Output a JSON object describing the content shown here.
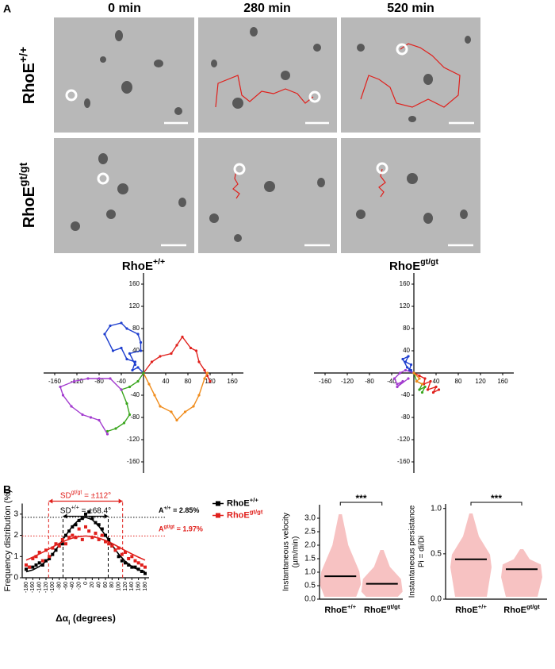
{
  "panel_a": {
    "label": "A",
    "columns": [
      "0 min",
      "280 min",
      "520 min"
    ],
    "rows": [
      {
        "base": "RhoE",
        "sup": "+/+"
      },
      {
        "base": "RhoE",
        "sup": "gt/gt"
      }
    ]
  },
  "panel_b": {
    "label": "B"
  },
  "chart_data": [
    {
      "type": "line",
      "title": {
        "base": "RhoE",
        "sup": "+/+"
      },
      "xlim": [
        -180,
        180
      ],
      "ylim": [
        -180,
        180
      ],
      "xticks": [
        -160,
        -120,
        -80,
        -40,
        40,
        80,
        120,
        160
      ],
      "yticks": [
        160,
        120,
        80,
        40,
        -40,
        -80,
        -120,
        -160
      ],
      "series": [
        {
          "color": "#1f3fcf",
          "x": [
            0,
            -10,
            -20,
            -15,
            -30,
            -40,
            -55,
            -70,
            -60,
            -40,
            -30,
            -10,
            -5,
            -5,
            -25,
            -15
          ],
          "values": [
            0,
            10,
            5,
            20,
            25,
            45,
            40,
            70,
            85,
            90,
            80,
            70,
            55,
            40,
            35,
            15
          ]
        },
        {
          "color": "#e0201c",
          "x": [
            0,
            15,
            30,
            50,
            60,
            70,
            85,
            95,
            100,
            110,
            115,
            120
          ],
          "values": [
            0,
            20,
            30,
            35,
            50,
            65,
            45,
            40,
            20,
            5,
            -5,
            -15
          ]
        },
        {
          "color": "#f08c1c",
          "x": [
            0,
            10,
            20,
            30,
            50,
            60,
            75,
            90,
            100,
            110,
            115
          ],
          "values": [
            0,
            -20,
            -40,
            -60,
            -70,
            -85,
            -70,
            -60,
            -40,
            -10,
            0
          ]
        },
        {
          "color": "#3aa61e",
          "x": [
            0,
            -10,
            -25,
            -40,
            -30,
            -25,
            -35,
            -50,
            -65
          ],
          "values": [
            0,
            -15,
            -25,
            -30,
            -55,
            -75,
            -90,
            -100,
            -105
          ]
        },
        {
          "color": "#a33ccf",
          "x": [
            -40,
            -60,
            -80,
            -100,
            -125,
            -150,
            -145,
            -130,
            -110,
            -95,
            -80,
            -65
          ],
          "values": [
            -30,
            -10,
            -10,
            -10,
            -15,
            -25,
            -40,
            -60,
            -75,
            -80,
            -85,
            -110
          ]
        }
      ]
    },
    {
      "type": "line",
      "title": {
        "base": "RhoE",
        "sup": "gt/gt"
      },
      "xlim": [
        -180,
        180
      ],
      "ylim": [
        -180,
        180
      ],
      "xticks": [
        -160,
        -120,
        -80,
        -40,
        40,
        80,
        120,
        160
      ],
      "yticks": [
        160,
        120,
        80,
        40,
        -40,
        -80,
        -120,
        -160
      ],
      "series": [
        {
          "color": "#1f3fcf",
          "x": [
            0,
            -8,
            -5,
            -15,
            -10,
            -20,
            -12,
            -5
          ],
          "values": [
            0,
            5,
            15,
            20,
            30,
            25,
            10,
            5
          ]
        },
        {
          "color": "#e0201c",
          "x": [
            0,
            10,
            20,
            18,
            30,
            25,
            40,
            35,
            45
          ],
          "values": [
            0,
            -5,
            -10,
            -20,
            -15,
            -30,
            -25,
            -35,
            -30
          ]
        },
        {
          "color": "#a33ccf",
          "x": [
            0,
            -15,
            -25,
            -35,
            -30,
            -20,
            -30,
            -10
          ],
          "values": [
            0,
            5,
            0,
            -10,
            -20,
            -15,
            -25,
            -10
          ]
        },
        {
          "color": "#3aa61e",
          "x": [
            0,
            5,
            15,
            10,
            20,
            15
          ],
          "values": [
            0,
            -15,
            -20,
            -30,
            -25,
            -35
          ]
        },
        {
          "color": "#f08c1c",
          "x": [
            0,
            10,
            5,
            15
          ],
          "values": [
            0,
            -10,
            -15,
            -20
          ]
        }
      ]
    },
    {
      "type": "scatter",
      "y_label": "Frequency distribution (%)",
      "x_label": {
        "base": "Δα",
        "sub": "i",
        "rest": " (degrees)"
      },
      "xlim": [
        -192,
        192
      ],
      "ylim": [
        0,
        3.5
      ],
      "xticks": [
        -180,
        -160,
        -140,
        -120,
        -100,
        -80,
        -60,
        -40,
        -20,
        0,
        20,
        40,
        60,
        80,
        100,
        120,
        140,
        160,
        180
      ],
      "yticks": [
        0,
        1,
        2,
        3
      ],
      "x": [
        -180,
        -170,
        -160,
        -150,
        -140,
        -130,
        -120,
        -110,
        -100,
        -90,
        -80,
        -70,
        -60,
        -50,
        -40,
        -30,
        -20,
        -10,
        0,
        10,
        20,
        30,
        40,
        50,
        60,
        70,
        80,
        90,
        100,
        110,
        120,
        130,
        140,
        150,
        160,
        170,
        180
      ],
      "series": [
        {
          "name": {
            "base": "RhoE",
            "sup": "+/+"
          },
          "color": "#000000",
          "values": [
            0.4,
            0.5,
            0.5,
            0.6,
            0.7,
            0.6,
            0.8,
            0.9,
            1.1,
            1.3,
            1.5,
            1.6,
            2.0,
            2.2,
            2.4,
            2.5,
            2.7,
            2.8,
            3.0,
            3.1,
            2.8,
            2.6,
            2.5,
            2.3,
            2.0,
            1.8,
            1.5,
            1.3,
            1.0,
            0.8,
            0.7,
            0.6,
            0.5,
            0.5,
            0.4,
            0.3,
            0.2
          ],
          "fit_x": [
            -180,
            -160,
            -140,
            -120,
            -100,
            -80,
            -60,
            -40,
            -20,
            0,
            20,
            40,
            60,
            80,
            100,
            120,
            140,
            160,
            180
          ],
          "fit": [
            0.28,
            0.37,
            0.53,
            0.77,
            1.11,
            1.54,
            2.0,
            2.43,
            2.74,
            2.85,
            2.74,
            2.43,
            2.0,
            1.54,
            1.11,
            0.77,
            0.53,
            0.37,
            0.28
          ]
        },
        {
          "name": {
            "base": "RhoE",
            "sup": "gt/gt"
          },
          "color": "#e0201c",
          "values": [
            0.6,
            0.5,
            0.9,
            1.0,
            1.2,
            0.8,
            1.3,
            1.0,
            1.4,
            1.6,
            1.5,
            1.8,
            1.6,
            1.9,
            2.0,
            1.9,
            2.3,
            1.8,
            2.4,
            2.2,
            1.9,
            2.1,
            1.8,
            2.0,
            1.7,
            1.6,
            1.5,
            1.3,
            1.4,
            1.1,
            1.2,
            0.9,
            1.0,
            0.8,
            0.7,
            0.6,
            0.5
          ],
          "fit_x": [
            -180,
            -160,
            -140,
            -120,
            -100,
            -80,
            -60,
            -40,
            -20,
            0,
            20,
            40,
            60,
            80,
            100,
            120,
            140,
            160,
            180
          ],
          "fit": [
            0.83,
            0.97,
            1.12,
            1.28,
            1.45,
            1.62,
            1.76,
            1.87,
            1.94,
            1.97,
            1.94,
            1.87,
            1.76,
            1.62,
            1.45,
            1.28,
            1.12,
            0.97,
            0.83
          ]
        }
      ],
      "annotations": [
        {
          "orientation": "vertical",
          "color": "#000000",
          "base": "SD",
          "sup": "+/+",
          "rest": " = ±68.4°",
          "value": 68.4
        },
        {
          "orientation": "vertical",
          "color": "#e0201c",
          "base": "SD",
          "sup": "gt/gt",
          "rest": " = ±112°",
          "value": 112
        },
        {
          "orientation": "horizontal",
          "color": "#000000",
          "base": "A",
          "sup": "+/+",
          "rest": " = 2.85%",
          "value": 2.85
        },
        {
          "orientation": "horizontal",
          "color": "#e0201c",
          "base": "A",
          "sup": "gt/gt",
          "rest": " = 1.97%",
          "value": 1.97
        }
      ],
      "legend": "right"
    },
    {
      "type": "dot",
      "y_label": [
        "Instantaneous velocity",
        "(µm/min)"
      ],
      "ylim": [
        0,
        3.5
      ],
      "yticks": [
        {
          "value": 0,
          "label": "0.0"
        },
        {
          "value": 0.5,
          "label": "0.5"
        },
        {
          "value": 1,
          "label": "1.0"
        },
        {
          "value": 1.5,
          "label": "1.5"
        },
        {
          "value": 2,
          "label": "2.0"
        },
        {
          "value": 2.5,
          "label": "2.5"
        },
        {
          "value": 3,
          "label": "3.0"
        }
      ],
      "categories": [
        {
          "base": "RhoE",
          "sup": "+/+"
        },
        {
          "base": "RhoE",
          "sup": "gt/gt"
        }
      ],
      "values": [
        0.85,
        0.57
      ],
      "color": "#f08f8f",
      "significance": "***"
    },
    {
      "type": "dot",
      "y_label": [
        "Instantaneous persistance",
        "Pi = di/Di"
      ],
      "ylim": [
        0,
        1.05
      ],
      "yticks": [
        {
          "value": 0,
          "label": "0.0"
        },
        {
          "value": 0.5,
          "label": "0.5"
        },
        {
          "value": 1,
          "label": "1.0"
        }
      ],
      "categories": [
        {
          "base": "RhoE",
          "sup": "+/+"
        },
        {
          "base": "RhoE",
          "sup": "gt/gt"
        }
      ],
      "values": [
        0.44,
        0.33
      ],
      "color": "#f08f8f",
      "significance": "***"
    }
  ]
}
